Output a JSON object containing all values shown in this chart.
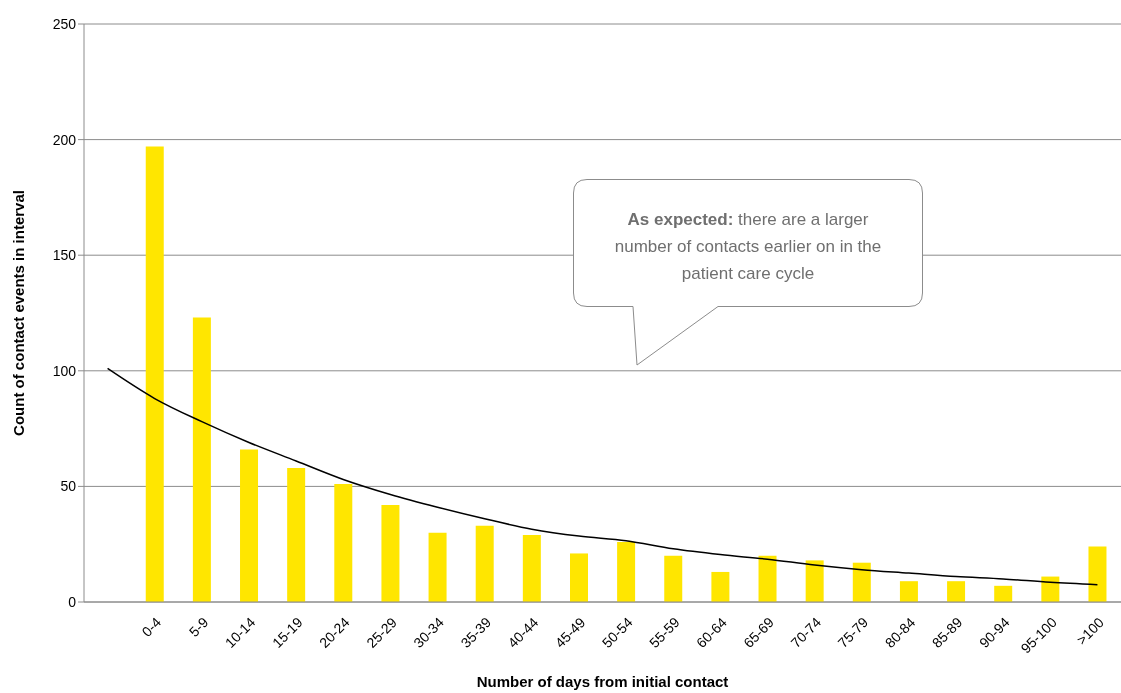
{
  "chart_data": {
    "type": "bar",
    "xlabel": "Number of days from initial contact",
    "ylabel": "Count of contact events in interval",
    "categories": [
      null,
      "0-4",
      "5-9",
      "10-14",
      "15-19",
      "20-24",
      "25-29",
      "30-34",
      "35-39",
      "40-44",
      "45-49",
      "50-54",
      "55-59",
      "60-64",
      "65-69",
      "70-74",
      "75-79",
      "80-84",
      "85-89",
      "90-94",
      "95-100",
      ">100"
    ],
    "series": [
      {
        "color": "#ffe600",
        "values": [
          null,
          197,
          123,
          66,
          58,
          51,
          42,
          30,
          33,
          29,
          21,
          26,
          20,
          13,
          20,
          18,
          17,
          9,
          9,
          7,
          11,
          24
        ]
      },
      {
        "type": "line",
        "color": "#000000",
        "values": [
          101,
          88,
          78,
          69,
          61,
          53,
          46.5,
          41,
          36,
          31.5,
          28.5,
          26.5,
          23,
          20.5,
          18.5,
          16,
          14,
          12.5,
          11,
          10,
          8.5,
          7.5
        ]
      }
    ],
    "ylim": [
      0,
      250
    ],
    "yticks": [
      0,
      50,
      100,
      150,
      200,
      250
    ],
    "grid": "y",
    "marker": "none",
    "annotations": [
      "As expected: there are a larger number of contacts earlier on in the patient care cycle"
    ]
  }
}
